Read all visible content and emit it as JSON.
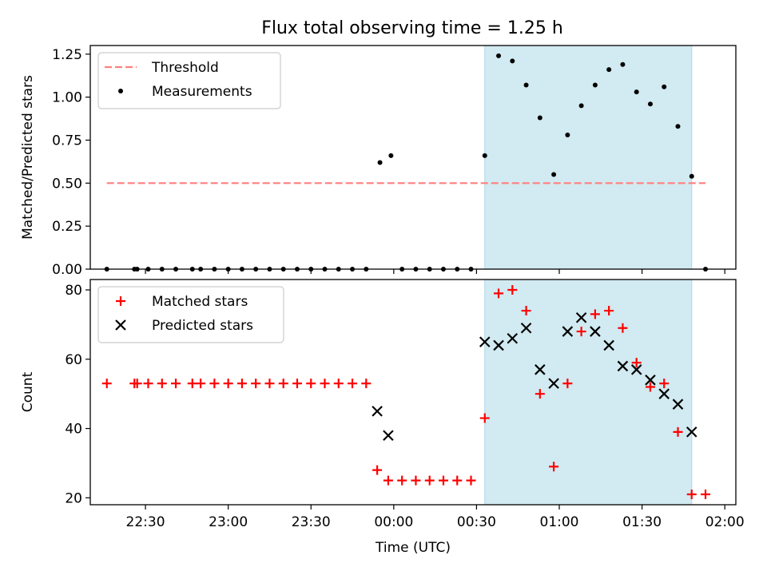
{
  "title": "Flux total observing time = 1.25 h",
  "colors": {
    "shade": "#add8e6",
    "threshold": "#ff7f7f",
    "matched": "#ff0000",
    "predicted": "#000000",
    "measurement": "#000000"
  },
  "chart_data": [
    {
      "type": "scatter",
      "ylabel": "Matched/Predicted stars",
      "ylim": [
        0,
        1.3
      ],
      "y_ticks": [
        0,
        0.25,
        0.5,
        0.75,
        1.0,
        1.25
      ],
      "y_tick_labels": [
        "0.00",
        "0.25",
        "0.50",
        "0.75",
        "1.00",
        "1.25"
      ],
      "xlim": [
        "22:10",
        "02:04"
      ],
      "legend": {
        "placement": "top-left",
        "entries": [
          "Threshold",
          "Measurements"
        ]
      },
      "shaded_interval": [
        "00:33",
        "01:48"
      ],
      "threshold": {
        "name": "Threshold",
        "value": 0.5,
        "x": [
          "22:16",
          "01:53"
        ],
        "style": "dashed"
      },
      "series": [
        {
          "name": "Measurements",
          "marker": "dot",
          "points": [
            [
              "22:16",
              0
            ],
            [
              "22:26",
              0
            ],
            [
              "22:27",
              0
            ],
            [
              "22:31",
              0
            ],
            [
              "22:36",
              0
            ],
            [
              "22:41",
              0
            ],
            [
              "22:47",
              0
            ],
            [
              "22:50",
              0
            ],
            [
              "22:55",
              0
            ],
            [
              "23:00",
              0
            ],
            [
              "23:05",
              0
            ],
            [
              "23:10",
              0
            ],
            [
              "23:15",
              0
            ],
            [
              "23:20",
              0
            ],
            [
              "23:25",
              0
            ],
            [
              "23:30",
              0
            ],
            [
              "23:35",
              0
            ],
            [
              "23:40",
              0
            ],
            [
              "23:45",
              0
            ],
            [
              "23:50",
              0
            ],
            [
              "23:55",
              0.62
            ],
            [
              "23:59",
              0.66
            ],
            [
              "00:03",
              0
            ],
            [
              "00:08",
              0
            ],
            [
              "00:13",
              0
            ],
            [
              "00:18",
              0
            ],
            [
              "00:23",
              0
            ],
            [
              "00:28",
              0
            ],
            [
              "00:33",
              0.66
            ],
            [
              "00:38",
              1.24
            ],
            [
              "00:43",
              1.21
            ],
            [
              "00:48",
              1.07
            ],
            [
              "00:53",
              0.88
            ],
            [
              "00:58",
              0.55
            ],
            [
              "01:03",
              0.78
            ],
            [
              "01:08",
              0.95
            ],
            [
              "01:13",
              1.07
            ],
            [
              "01:18",
              1.16
            ],
            [
              "01:23",
              1.19
            ],
            [
              "01:28",
              1.03
            ],
            [
              "01:33",
              0.96
            ],
            [
              "01:38",
              1.06
            ],
            [
              "01:43",
              0.83
            ],
            [
              "01:48",
              0.54
            ],
            [
              "01:53",
              0
            ]
          ]
        }
      ]
    },
    {
      "type": "scatter",
      "xlabel": "Time (UTC)",
      "ylabel": "Count",
      "ylim": [
        18,
        83
      ],
      "y_ticks": [
        20,
        40,
        60,
        80
      ],
      "y_tick_labels": [
        "20",
        "40",
        "60",
        "80"
      ],
      "xlim": [
        "22:10",
        "02:04"
      ],
      "x_ticks": [
        "22:30",
        "23:00",
        "23:30",
        "00:00",
        "00:30",
        "01:00",
        "01:30",
        "02:00"
      ],
      "x_tick_labels": [
        "22:30",
        "23:00",
        "23:30",
        "00:00",
        "00:30",
        "01:00",
        "01:30",
        "02:00"
      ],
      "legend": {
        "placement": "top-left",
        "entries": [
          "Matched stars",
          "Predicted stars"
        ]
      },
      "shaded_interval": [
        "00:33",
        "01:48"
      ],
      "series": [
        {
          "name": "Matched stars",
          "marker": "plus",
          "points": [
            [
              "22:16",
              53
            ],
            [
              "22:26",
              53
            ],
            [
              "22:27",
              53
            ],
            [
              "22:31",
              53
            ],
            [
              "22:36",
              53
            ],
            [
              "22:41",
              53
            ],
            [
              "22:47",
              53
            ],
            [
              "22:50",
              53
            ],
            [
              "22:55",
              53
            ],
            [
              "23:00",
              53
            ],
            [
              "23:05",
              53
            ],
            [
              "23:10",
              53
            ],
            [
              "23:15",
              53
            ],
            [
              "23:20",
              53
            ],
            [
              "23:25",
              53
            ],
            [
              "23:30",
              53
            ],
            [
              "23:35",
              53
            ],
            [
              "23:40",
              53
            ],
            [
              "23:45",
              53
            ],
            [
              "23:50",
              53
            ],
            [
              "23:54",
              28
            ],
            [
              "23:58",
              25
            ],
            [
              "00:03",
              25
            ],
            [
              "00:08",
              25
            ],
            [
              "00:13",
              25
            ],
            [
              "00:18",
              25
            ],
            [
              "00:23",
              25
            ],
            [
              "00:28",
              25
            ],
            [
              "00:33",
              43
            ],
            [
              "00:38",
              79
            ],
            [
              "00:43",
              80
            ],
            [
              "00:48",
              74
            ],
            [
              "00:53",
              50
            ],
            [
              "00:58",
              29
            ],
            [
              "01:03",
              53
            ],
            [
              "01:08",
              68
            ],
            [
              "01:13",
              73
            ],
            [
              "01:18",
              74
            ],
            [
              "01:23",
              69
            ],
            [
              "01:28",
              59
            ],
            [
              "01:33",
              52
            ],
            [
              "01:38",
              53
            ],
            [
              "01:43",
              39
            ],
            [
              "01:48",
              21
            ],
            [
              "01:53",
              21
            ]
          ]
        },
        {
          "name": "Predicted stars",
          "marker": "x",
          "points": [
            [
              "23:54",
              45
            ],
            [
              "23:58",
              38
            ],
            [
              "00:33",
              65
            ],
            [
              "00:38",
              64
            ],
            [
              "00:43",
              66
            ],
            [
              "00:48",
              69
            ],
            [
              "00:53",
              57
            ],
            [
              "00:58",
              53
            ],
            [
              "01:03",
              68
            ],
            [
              "01:08",
              72
            ],
            [
              "01:13",
              68
            ],
            [
              "01:18",
              64
            ],
            [
              "01:23",
              58
            ],
            [
              "01:28",
              57
            ],
            [
              "01:33",
              54
            ],
            [
              "01:38",
              50
            ],
            [
              "01:43",
              47
            ],
            [
              "01:48",
              39
            ]
          ]
        }
      ]
    }
  ]
}
